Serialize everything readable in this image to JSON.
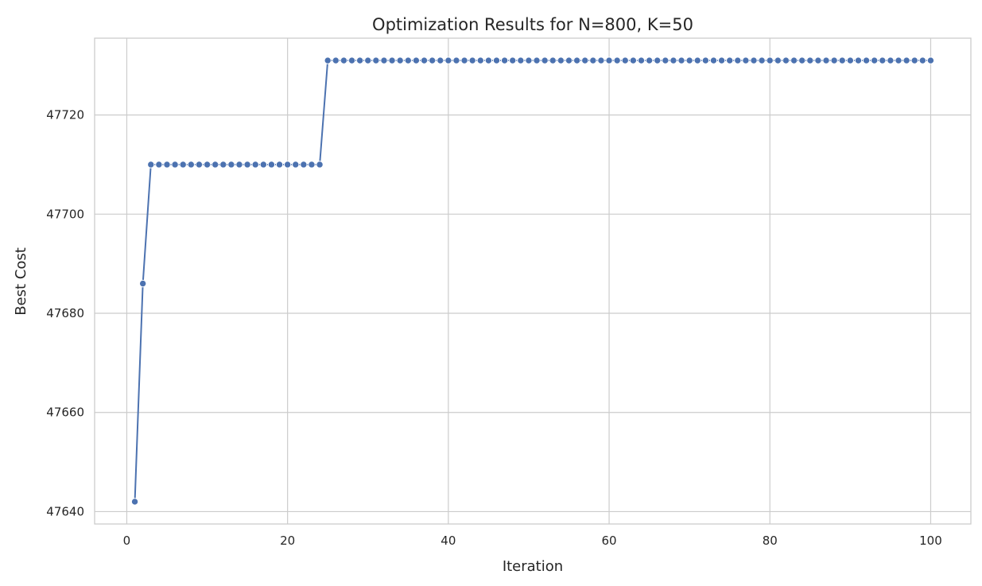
{
  "chart_data": {
    "type": "line",
    "title": "Optimization Results for N=800, K=50",
    "xlabel": "Iteration",
    "ylabel": "Best Cost",
    "xlim": [
      -4,
      105
    ],
    "ylim": [
      47637.5,
      47735.5
    ],
    "xticks": [
      0,
      20,
      40,
      60,
      80,
      100
    ],
    "yticks": [
      47640,
      47660,
      47680,
      47700,
      47720
    ],
    "grid": true,
    "markers": true,
    "color": "#4c72b0",
    "series": [
      {
        "x": [
          1,
          2,
          3,
          4,
          5,
          6,
          7,
          8,
          9,
          10,
          11,
          12,
          13,
          14,
          15,
          16,
          17,
          18,
          19,
          20,
          21,
          22,
          23,
          24,
          25,
          26,
          27,
          28,
          29,
          30,
          31,
          32,
          33,
          34,
          35,
          36,
          37,
          38,
          39,
          40,
          41,
          42,
          43,
          44,
          45,
          46,
          47,
          48,
          49,
          50,
          51,
          52,
          53,
          54,
          55,
          56,
          57,
          58,
          59,
          60,
          61,
          62,
          63,
          64,
          65,
          66,
          67,
          68,
          69,
          70,
          71,
          72,
          73,
          74,
          75,
          76,
          77,
          78,
          79,
          80,
          81,
          82,
          83,
          84,
          85,
          86,
          87,
          88,
          89,
          90,
          91,
          92,
          93,
          94,
          95,
          96,
          97,
          98,
          99,
          100
        ],
        "values": [
          47642,
          47686,
          47710,
          47710,
          47710,
          47710,
          47710,
          47710,
          47710,
          47710,
          47710,
          47710,
          47710,
          47710,
          47710,
          47710,
          47710,
          47710,
          47710,
          47710,
          47710,
          47710,
          47710,
          47710,
          47731,
          47731,
          47731,
          47731,
          47731,
          47731,
          47731,
          47731,
          47731,
          47731,
          47731,
          47731,
          47731,
          47731,
          47731,
          47731,
          47731,
          47731,
          47731,
          47731,
          47731,
          47731,
          47731,
          47731,
          47731,
          47731,
          47731,
          47731,
          47731,
          47731,
          47731,
          47731,
          47731,
          47731,
          47731,
          47731,
          47731,
          47731,
          47731,
          47731,
          47731,
          47731,
          47731,
          47731,
          47731,
          47731,
          47731,
          47731,
          47731,
          47731,
          47731,
          47731,
          47731,
          47731,
          47731,
          47731,
          47731,
          47731,
          47731,
          47731,
          47731,
          47731,
          47731,
          47731,
          47731,
          47731,
          47731,
          47731,
          47731,
          47731,
          47731,
          47731,
          47731,
          47731,
          47731,
          47731
        ]
      }
    ]
  }
}
